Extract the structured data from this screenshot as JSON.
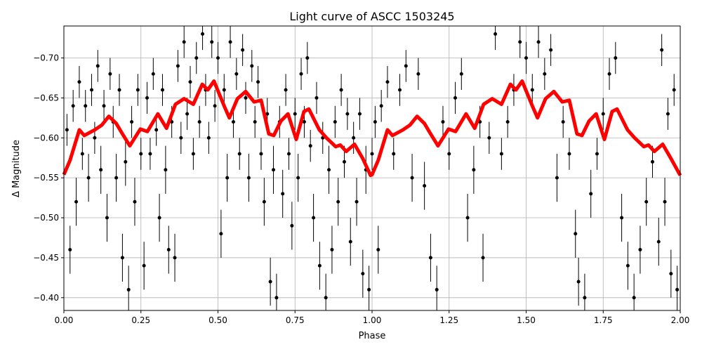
{
  "chart_data": {
    "type": "scatter",
    "title": "Light curve of ASCC 1503245",
    "xlabel": "Phase",
    "ylabel": "Δ Magnitude",
    "xlim": [
      0,
      2
    ],
    "ylim": [
      -0.74,
      -0.384
    ],
    "y_inverted": true,
    "grid": true,
    "x_ticks": [
      "0.00",
      "0.25",
      "0.50",
      "0.75",
      "1.00",
      "1.25",
      "1.50",
      "1.75",
      "2.00"
    ],
    "x_tick_values": [
      0,
      0.25,
      0.5,
      0.75,
      1,
      1.25,
      1.5,
      1.75,
      2
    ],
    "y_ticks": [
      "−0.70",
      "−0.65",
      "−0.60",
      "−0.55",
      "−0.50",
      "−0.45",
      "−0.40"
    ],
    "y_tick_values": [
      -0.7,
      -0.65,
      -0.6,
      -0.55,
      -0.5,
      -0.45,
      -0.4
    ],
    "colors": {
      "points": "#000000",
      "model": "#ff0000",
      "grid": "#b0b0b0"
    },
    "series": [
      {
        "kind": "errorbar-points",
        "points": [
          [
            0.01,
            -0.61,
            0.02
          ],
          [
            0.02,
            -0.46,
            0.03
          ],
          [
            0.03,
            -0.64,
            0.02
          ],
          [
            0.04,
            -0.52,
            0.03
          ],
          [
            0.05,
            -0.67,
            0.02
          ],
          [
            0.06,
            -0.58,
            0.02
          ],
          [
            0.07,
            -0.64,
            0.02
          ],
          [
            0.08,
            -0.55,
            0.03
          ],
          [
            0.09,
            -0.66,
            0.02
          ],
          [
            0.1,
            -0.6,
            0.02
          ],
          [
            0.11,
            -0.69,
            0.02
          ],
          [
            0.12,
            -0.56,
            0.03
          ],
          [
            0.13,
            -0.64,
            0.02
          ],
          [
            0.14,
            -0.5,
            0.03
          ],
          [
            0.15,
            -0.68,
            0.02
          ],
          [
            0.16,
            -0.62,
            0.02
          ],
          [
            0.17,
            -0.55,
            0.03
          ],
          [
            0.18,
            -0.66,
            0.02
          ],
          [
            0.19,
            -0.45,
            0.03
          ],
          [
            0.2,
            -0.57,
            0.03
          ],
          [
            0.21,
            -0.41,
            0.03
          ],
          [
            0.22,
            -0.62,
            0.02
          ],
          [
            0.23,
            -0.52,
            0.03
          ],
          [
            0.24,
            -0.66,
            0.02
          ],
          [
            0.25,
            -0.58,
            0.02
          ],
          [
            0.26,
            -0.44,
            0.03
          ],
          [
            0.27,
            -0.65,
            0.02
          ],
          [
            0.28,
            -0.58,
            0.02
          ],
          [
            0.29,
            -0.68,
            0.02
          ],
          [
            0.3,
            -0.61,
            0.02
          ],
          [
            0.31,
            -0.5,
            0.03
          ],
          [
            0.32,
            -0.66,
            0.02
          ],
          [
            0.33,
            -0.56,
            0.03
          ],
          [
            0.34,
            -0.46,
            0.03
          ],
          [
            0.35,
            -0.62,
            0.02
          ],
          [
            0.36,
            -0.45,
            0.03
          ],
          [
            0.37,
            -0.69,
            0.02
          ],
          [
            0.38,
            -0.6,
            0.02
          ],
          [
            0.39,
            -0.72,
            0.02
          ],
          [
            0.4,
            -0.63,
            0.02
          ],
          [
            0.41,
            -0.67,
            0.02
          ],
          [
            0.42,
            -0.58,
            0.02
          ],
          [
            0.43,
            -0.7,
            0.02
          ],
          [
            0.44,
            -0.62,
            0.02
          ],
          [
            0.45,
            -0.73,
            0.02
          ],
          [
            0.46,
            -0.66,
            0.02
          ],
          [
            0.47,
            -0.6,
            0.02
          ],
          [
            0.48,
            -0.72,
            0.02
          ],
          [
            0.49,
            -0.64,
            0.02
          ],
          [
            0.5,
            -0.7,
            0.02
          ],
          [
            0.51,
            -0.48,
            0.03
          ],
          [
            0.52,
            -0.66,
            0.02
          ],
          [
            0.53,
            -0.55,
            0.03
          ],
          [
            0.54,
            -0.72,
            0.02
          ],
          [
            0.55,
            -0.62,
            0.02
          ],
          [
            0.56,
            -0.68,
            0.02
          ],
          [
            0.57,
            -0.58,
            0.02
          ],
          [
            0.58,
            -0.71,
            0.02
          ],
          [
            0.59,
            -0.65,
            0.02
          ],
          [
            0.6,
            -0.55,
            0.03
          ],
          [
            0.61,
            -0.69,
            0.02
          ],
          [
            0.62,
            -0.62,
            0.02
          ],
          [
            0.63,
            -0.67,
            0.02
          ],
          [
            0.64,
            -0.58,
            0.02
          ],
          [
            0.65,
            -0.52,
            0.03
          ],
          [
            0.66,
            -0.63,
            0.02
          ],
          [
            0.67,
            -0.42,
            0.03
          ],
          [
            0.68,
            -0.56,
            0.03
          ],
          [
            0.69,
            -0.4,
            0.03
          ],
          [
            0.7,
            -0.62,
            0.02
          ],
          [
            0.71,
            -0.53,
            0.03
          ],
          [
            0.72,
            -0.66,
            0.02
          ],
          [
            0.73,
            -0.58,
            0.02
          ],
          [
            0.74,
            -0.49,
            0.03
          ],
          [
            0.75,
            -0.63,
            0.02
          ],
          [
            0.76,
            -0.55,
            0.03
          ],
          [
            0.77,
            -0.68,
            0.02
          ],
          [
            0.78,
            -0.62,
            0.02
          ],
          [
            0.79,
            -0.7,
            0.02
          ],
          [
            0.8,
            -0.59,
            0.02
          ],
          [
            0.81,
            -0.5,
            0.03
          ],
          [
            0.82,
            -0.65,
            0.02
          ],
          [
            0.83,
            -0.44,
            0.03
          ],
          [
            0.84,
            -0.6,
            0.02
          ],
          [
            0.85,
            -0.4,
            0.03
          ],
          [
            0.86,
            -0.56,
            0.03
          ],
          [
            0.87,
            -0.46,
            0.03
          ],
          [
            0.88,
            -0.62,
            0.02
          ],
          [
            0.89,
            -0.52,
            0.03
          ],
          [
            0.9,
            -0.66,
            0.02
          ],
          [
            0.91,
            -0.57,
            0.02
          ],
          [
            0.92,
            -0.63,
            0.02
          ],
          [
            0.93,
            -0.47,
            0.03
          ],
          [
            0.94,
            -0.6,
            0.02
          ],
          [
            0.95,
            -0.52,
            0.03
          ],
          [
            0.96,
            -0.63,
            0.02
          ],
          [
            0.97,
            -0.43,
            0.03
          ],
          [
            0.98,
            -0.56,
            0.03
          ],
          [
            0.99,
            -0.41,
            0.03
          ],
          [
            1.0,
            -0.58,
            0.02
          ],
          [
            1.01,
            -0.62,
            0.02
          ],
          [
            1.02,
            -0.46,
            0.03
          ],
          [
            1.03,
            -0.64,
            0.02
          ],
          [
            1.05,
            -0.67,
            0.02
          ],
          [
            1.07,
            -0.58,
            0.02
          ],
          [
            1.09,
            -0.66,
            0.02
          ],
          [
            1.11,
            -0.69,
            0.02
          ],
          [
            1.13,
            -0.55,
            0.03
          ],
          [
            1.15,
            -0.68,
            0.02
          ],
          [
            1.17,
            -0.54,
            0.03
          ],
          [
            1.19,
            -0.45,
            0.03
          ],
          [
            1.21,
            -0.41,
            0.03
          ],
          [
            1.23,
            -0.62,
            0.02
          ],
          [
            1.25,
            -0.58,
            0.02
          ],
          [
            1.27,
            -0.65,
            0.02
          ],
          [
            1.29,
            -0.68,
            0.02
          ],
          [
            1.31,
            -0.5,
            0.03
          ],
          [
            1.33,
            -0.56,
            0.03
          ],
          [
            1.35,
            -0.62,
            0.02
          ],
          [
            1.36,
            -0.45,
            0.03
          ],
          [
            1.38,
            -0.6,
            0.02
          ],
          [
            1.4,
            -0.73,
            0.02
          ],
          [
            1.42,
            -0.58,
            0.02
          ],
          [
            1.44,
            -0.62,
            0.02
          ],
          [
            1.46,
            -0.66,
            0.02
          ],
          [
            1.48,
            -0.72,
            0.02
          ],
          [
            1.5,
            -0.7,
            0.02
          ],
          [
            1.52,
            -0.66,
            0.02
          ],
          [
            1.54,
            -0.72,
            0.02
          ],
          [
            1.56,
            -0.68,
            0.02
          ],
          [
            1.58,
            -0.71,
            0.02
          ],
          [
            1.6,
            -0.55,
            0.03
          ],
          [
            1.62,
            -0.62,
            0.02
          ],
          [
            1.64,
            -0.58,
            0.02
          ],
          [
            1.66,
            -0.48,
            0.03
          ],
          [
            1.67,
            -0.42,
            0.03
          ],
          [
            1.69,
            -0.4,
            0.03
          ],
          [
            1.71,
            -0.53,
            0.03
          ],
          [
            1.73,
            -0.58,
            0.02
          ],
          [
            1.75,
            -0.63,
            0.02
          ],
          [
            1.77,
            -0.68,
            0.02
          ],
          [
            1.79,
            -0.7,
            0.02
          ],
          [
            1.81,
            -0.5,
            0.03
          ],
          [
            1.83,
            -0.44,
            0.03
          ],
          [
            1.85,
            -0.4,
            0.03
          ],
          [
            1.87,
            -0.46,
            0.03
          ],
          [
            1.89,
            -0.52,
            0.03
          ],
          [
            1.91,
            -0.57,
            0.02
          ],
          [
            1.93,
            -0.47,
            0.03
          ],
          [
            1.94,
            -0.71,
            0.02
          ],
          [
            1.95,
            -0.52,
            0.03
          ],
          [
            1.96,
            -0.63,
            0.02
          ],
          [
            1.97,
            -0.43,
            0.03
          ],
          [
            1.98,
            -0.66,
            0.02
          ],
          [
            1.99,
            -0.41,
            0.03
          ]
        ]
      },
      {
        "kind": "model-line",
        "x": [
          0,
          0.02,
          0.05,
          0.066,
          0.1,
          0.123,
          0.146,
          0.17,
          0.19,
          0.214,
          0.248,
          0.271,
          0.305,
          0.333,
          0.362,
          0.39,
          0.42,
          0.449,
          0.467,
          0.487,
          0.52,
          0.537,
          0.563,
          0.59,
          0.617,
          0.64,
          0.665,
          0.681,
          0.704,
          0.727,
          0.754,
          0.779,
          0.795,
          0.829,
          0.852,
          0.882,
          0.897,
          0.916,
          0.943,
          0.97,
          0.995,
          1.0,
          1.02,
          1.05,
          1.066,
          1.1,
          1.123,
          1.146,
          1.17,
          1.19,
          1.214,
          1.248,
          1.271,
          1.305,
          1.333,
          1.362,
          1.39,
          1.42,
          1.449,
          1.467,
          1.487,
          1.52,
          1.537,
          1.563,
          1.59,
          1.617,
          1.64,
          1.665,
          1.681,
          1.704,
          1.727,
          1.754,
          1.779,
          1.795,
          1.829,
          1.852,
          1.882,
          1.897,
          1.916,
          1.943,
          1.97,
          2.0
        ],
        "y": [
          -0.554,
          -0.572,
          -0.61,
          -0.603,
          -0.61,
          -0.616,
          -0.627,
          -0.618,
          -0.605,
          -0.59,
          -0.611,
          -0.608,
          -0.63,
          -0.612,
          -0.642,
          -0.649,
          -0.642,
          -0.667,
          -0.66,
          -0.671,
          -0.64,
          -0.625,
          -0.649,
          -0.658,
          -0.645,
          -0.647,
          -0.605,
          -0.603,
          -0.621,
          -0.63,
          -0.598,
          -0.633,
          -0.636,
          -0.61,
          -0.6,
          -0.589,
          -0.591,
          -0.583,
          -0.592,
          -0.574,
          -0.553,
          -0.554,
          -0.572,
          -0.61,
          -0.603,
          -0.61,
          -0.616,
          -0.627,
          -0.618,
          -0.605,
          -0.59,
          -0.611,
          -0.608,
          -0.63,
          -0.612,
          -0.642,
          -0.649,
          -0.642,
          -0.667,
          -0.66,
          -0.671,
          -0.64,
          -0.625,
          -0.649,
          -0.658,
          -0.645,
          -0.647,
          -0.605,
          -0.603,
          -0.621,
          -0.63,
          -0.598,
          -0.633,
          -0.636,
          -0.61,
          -0.6,
          -0.589,
          -0.591,
          -0.583,
          -0.592,
          -0.574,
          -0.553
        ]
      }
    ]
  }
}
